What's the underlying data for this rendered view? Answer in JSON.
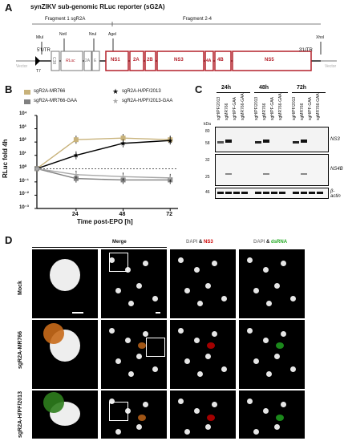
{
  "panel_a": {
    "letter": "A",
    "title": "synZIKV sub-genomic RLuc reporter (sG2A)",
    "fragment1": "Fragment 1 sgR2A",
    "fragment2": "Fragment 2-4",
    "sites": [
      "MluI",
      "NotI",
      "NruI",
      "AgeI",
      "XhoI"
    ],
    "utr5": "5'UTR",
    "utr3": "3'UTR",
    "t7": "T7",
    "vector_left": "Vector",
    "vector_right": "Vector",
    "segments": [
      "C38",
      "RLuc",
      "2A",
      "E",
      "NS1",
      "2A",
      "2B",
      "NS3",
      "4A",
      "4B",
      "NS5"
    ],
    "colors": {
      "red": "#b3202a",
      "grey": "#8a8a8a"
    }
  },
  "panel_b": {
    "letter": "B",
    "legend": [
      "sgR2A-MR766",
      "sgR2A-H/PF/2013",
      "sgR2A-MR766-GAA",
      "sgR2A-H/PF/2013-GAA"
    ],
    "ylabel": "RLuc fold 4h",
    "xlabel": "Time post-EPO [h]",
    "y_ticks": [
      "10⁴",
      "10³",
      "10²",
      "10¹",
      "10⁰",
      "10⁻¹",
      "10⁻²",
      "10⁻³"
    ],
    "x_ticks": [
      "24",
      "48",
      "72"
    ]
  },
  "chart_data": {
    "type": "line",
    "x": [
      4,
      24,
      48,
      72
    ],
    "xlabel": "Time post-EPO [h]",
    "ylabel": "RLuc fold 4h",
    "yscale": "log",
    "ylim": [
      0.001,
      10000
    ],
    "series": [
      {
        "name": "sgR2A-MR766",
        "color": "#c8b27a",
        "marker": "square",
        "values": [
          1,
          150,
          200,
          150
        ]
      },
      {
        "name": "sgR2A-H/PF/2013",
        "color": "#000000",
        "marker": "star",
        "values": [
          1,
          10,
          80,
          130
        ]
      },
      {
        "name": "sgR2A-MR766-GAA",
        "color": "#808080",
        "marker": "square",
        "values": [
          1,
          0.18,
          0.14,
          0.14
        ]
      },
      {
        "name": "sgR2A-H/PF/2013-GAA",
        "color": "#a8a8a8",
        "marker": "star",
        "values": [
          1,
          0.35,
          0.25,
          0.2
        ]
      }
    ]
  },
  "panel_c": {
    "letter": "C",
    "timepoints": [
      "24h",
      "48h",
      "72h"
    ],
    "lanes": [
      "sgH/PF/2013",
      "sgMR766",
      "sgH/PF-GAA",
      "sgMR766-GAA"
    ],
    "kda_label": "kDa",
    "markers_top": [
      "80",
      "58"
    ],
    "markers_mid": [
      "32",
      "25"
    ],
    "markers_bot": [
      "46"
    ],
    "blot_labels": [
      "NS3",
      "NS4B",
      "β-actin"
    ]
  },
  "panel_d": {
    "letter": "D",
    "col_headers": {
      "merge": "Merge",
      "ns3_a": "DAPI",
      "amp": "&",
      "ns3_b": "NS3",
      "ds_a": "DAPI",
      "ds_b": "dsRNA"
    },
    "rows": [
      "Mock",
      "sgR2A-MR766",
      "sgR2A-H/PF/2013"
    ]
  }
}
